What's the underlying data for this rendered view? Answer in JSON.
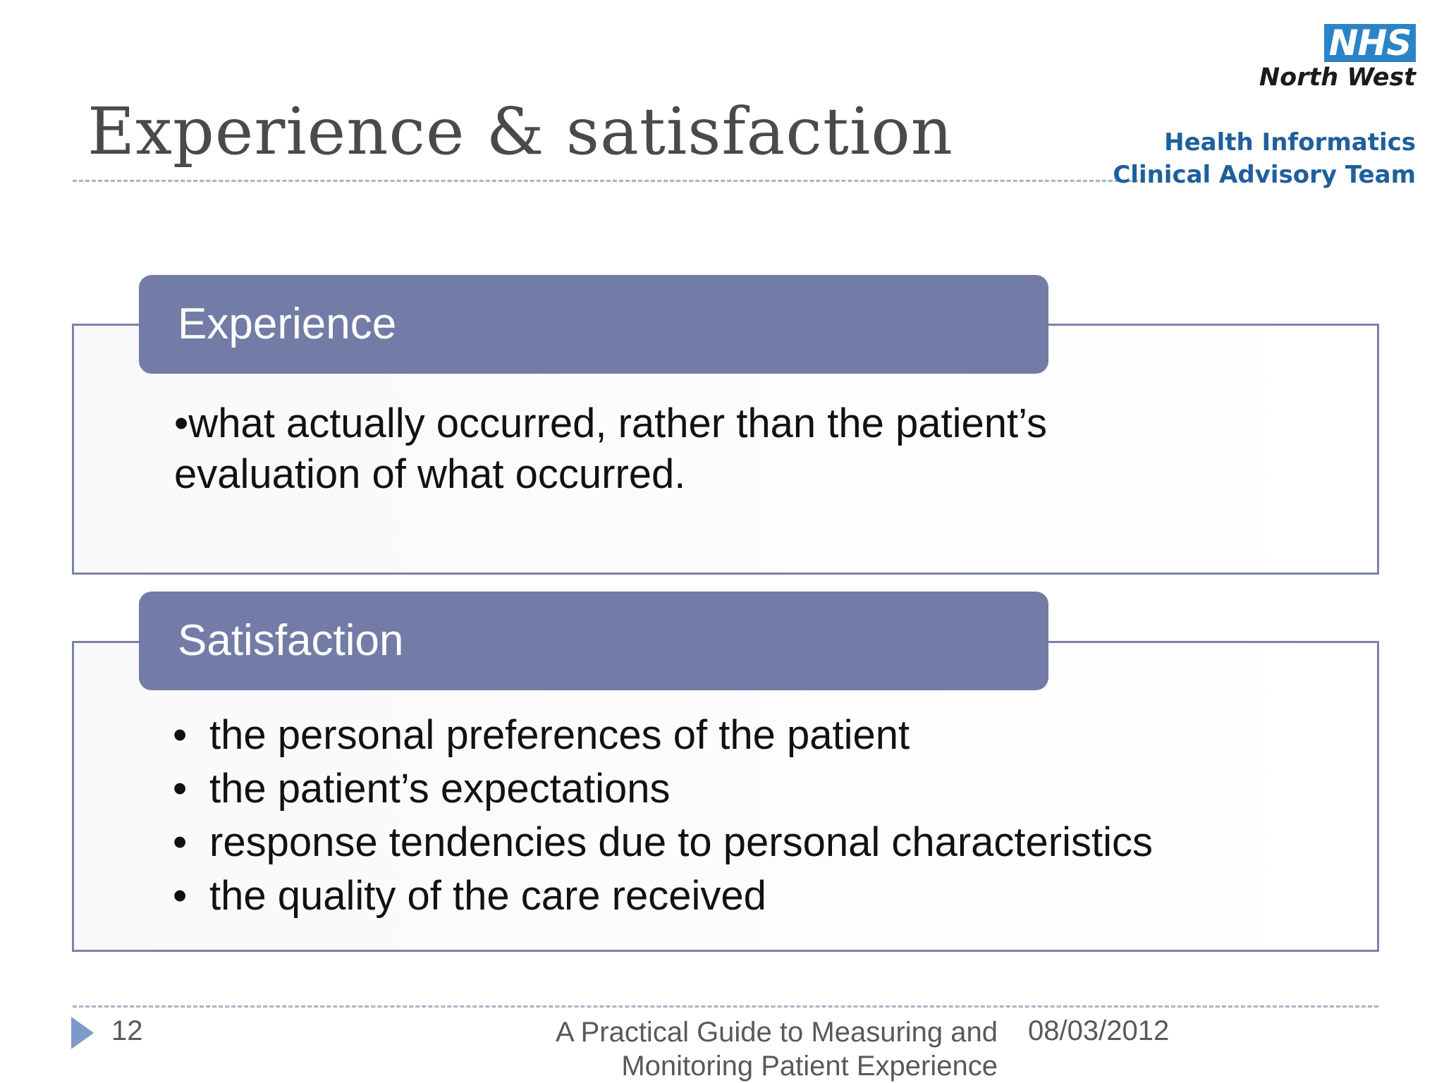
{
  "slide": {
    "title": "Experience & satisfaction"
  },
  "logo": {
    "brand": "NHS",
    "region": "North West",
    "team_line1": "Health Informatics",
    "team_line2": "Clinical Advisory Team"
  },
  "experience": {
    "heading": "Experience",
    "text": "•what actually occurred, rather than the patient’s evaluation of what occurred."
  },
  "satisfaction": {
    "heading": "Satisfaction",
    "items": [
      "the personal preferences of the patient",
      "the patient’s expectations",
      "response tendencies due to personal characteristics",
      "the quality of the care received"
    ]
  },
  "footer": {
    "page_number": "12",
    "doc_title_line1": "A Practical Guide to Measuring and",
    "doc_title_line2": "Monitoring Patient Experience",
    "date": "08/03/2012"
  },
  "colors": {
    "header_bar": "#737ca6",
    "panel_border": "#7a82a8",
    "nhs_blue": "#2b84c6",
    "team_text": "#1f5f9c"
  }
}
